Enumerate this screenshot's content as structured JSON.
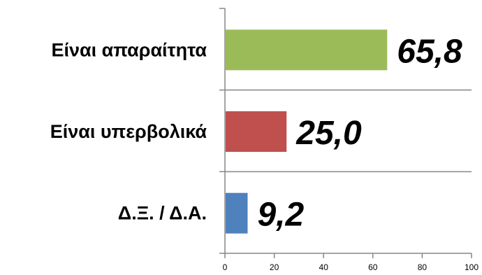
{
  "chart_data": {
    "type": "bar",
    "orientation": "horizontal",
    "categories": [
      "Είναι απαραίτητα",
      "Είναι υπερβολικά",
      "Δ.Ξ. / Δ.Α."
    ],
    "values": [
      65.8,
      25.0,
      9.2
    ],
    "value_labels": [
      "65,8",
      "25,0",
      "9,2"
    ],
    "colors": [
      "#9BBB59",
      "#C0504D",
      "#4F81BD"
    ],
    "xlim": [
      0,
      100
    ],
    "xticks": [
      0,
      20,
      40,
      60,
      80,
      100
    ],
    "xtick_labels": [
      "0",
      "20",
      "40",
      "60",
      "80",
      "100"
    ],
    "title": "",
    "xlabel": "",
    "ylabel": "",
    "grid": false,
    "legend": "none"
  }
}
